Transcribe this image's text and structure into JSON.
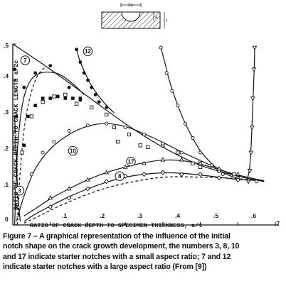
{
  "chart_data": {
    "type": "line",
    "xlabel": "RATIO OF CRACK DEPTH TO SPECIMEN THICKNESS, a/t",
    "ylabel": "RATIO OF CRACK DEPTH TO CRACK LENGTH   a/2c",
    "xlim": [
      0,
      0.7
    ],
    "ylim": [
      0,
      0.5
    ],
    "x_tick_labels": [
      "0",
      ".1",
      ".2",
      ".3",
      ".4",
      ".5",
      ".6",
      ".7"
    ],
    "y_tick_labels": [
      ".1",
      ".2",
      ".3",
      ".4",
      ".5"
    ],
    "inset_labels": [
      "2c",
      "a",
      "t"
    ],
    "grid": false,
    "series": [
      {
        "name": "3",
        "marker": "open-circle",
        "label_at": [
          0.018,
          0.095
        ],
        "points": [
          [
            0.005,
            0.25
          ],
          [
            0.005,
            0.21
          ],
          [
            0.008,
            0.1
          ],
          [
            0.013,
            0.05
          ],
          [
            0.015,
            0.02
          ]
        ],
        "curve": [
          [
            0.005,
            0.3
          ],
          [
            0.008,
            0.22
          ],
          [
            0.011,
            0.14
          ],
          [
            0.015,
            0.06
          ],
          [
            0.02,
            0.01
          ]
        ]
      },
      {
        "name": "7",
        "marker": "filled-circle",
        "label_at": [
          0.033,
          0.455
        ],
        "points": [
          [
            0.005,
            0.43
          ],
          [
            0.01,
            0.3
          ],
          [
            0.03,
            0.38
          ],
          [
            0.06,
            0.42
          ],
          [
            0.1,
            0.44
          ],
          [
            0.15,
            0.38
          ],
          [
            0.18,
            0.345
          ]
        ],
        "curve": [
          [
            0.005,
            0.0
          ],
          [
            0.012,
            0.2
          ],
          [
            0.025,
            0.33
          ],
          [
            0.045,
            0.395
          ],
          [
            0.075,
            0.42
          ],
          [
            0.12,
            0.418
          ],
          [
            0.16,
            0.39
          ],
          [
            0.19,
            0.36
          ]
        ]
      },
      {
        "name": "12",
        "marker": "filled-circle",
        "label_at": [
          0.2,
          0.48
        ],
        "points": [
          [
            0.17,
            0.485
          ],
          [
            0.18,
            0.45
          ],
          [
            0.19,
            0.42
          ],
          [
            0.2,
            0.4
          ],
          [
            0.21,
            0.38
          ],
          [
            0.22,
            0.36
          ],
          [
            0.23,
            0.34
          ],
          [
            0.25,
            0.325
          ]
        ],
        "curve": [
          [
            0.17,
            0.485
          ],
          [
            0.18,
            0.45
          ],
          [
            0.195,
            0.415
          ],
          [
            0.21,
            0.385
          ],
          [
            0.23,
            0.355
          ],
          [
            0.25,
            0.33
          ],
          [
            0.27,
            0.31
          ]
        ]
      },
      {
        "name": "filled-square",
        "marker": "filled-square",
        "points": [
          [
            0.03,
            0.22
          ],
          [
            0.04,
            0.3
          ],
          [
            0.06,
            0.33
          ],
          [
            0.08,
            0.35
          ],
          [
            0.1,
            0.35
          ],
          [
            0.12,
            0.355
          ],
          [
            0.14,
            0.35
          ],
          [
            0.16,
            0.35
          ],
          [
            0.18,
            0.35
          ]
        ],
        "curve": []
      },
      {
        "name": "open-square",
        "marker": "open-square",
        "points": [
          [
            0.02,
            0.1
          ],
          [
            0.025,
            0.2
          ],
          [
            0.05,
            0.3
          ],
          [
            0.08,
            0.34
          ],
          [
            0.11,
            0.355
          ],
          [
            0.14,
            0.36
          ],
          [
            0.17,
            0.335
          ],
          [
            0.21,
            0.325
          ],
          [
            0.25,
            0.305
          ],
          [
            0.27,
            0.27
          ],
          [
            0.28,
            0.23
          ],
          [
            0.31,
            0.25
          ],
          [
            0.34,
            0.22
          ],
          [
            0.36,
            0.215
          ],
          [
            0.4,
            0.22
          ],
          [
            0.44,
            0.2
          ],
          [
            0.48,
            0.17
          ],
          [
            0.5,
            0.16
          ],
          [
            0.55,
            0.15
          ],
          [
            0.59,
            0.14
          ]
        ],
        "curve": []
      },
      {
        "name": "10",
        "marker": "open-circle",
        "label_at": [
          0.16,
          0.205
        ],
        "points": [
          [
            0.05,
            0.14
          ],
          [
            0.08,
            0.2
          ],
          [
            0.11,
            0.23
          ],
          [
            0.15,
            0.26
          ],
          [
            0.2,
            0.275
          ],
          [
            0.25,
            0.28
          ],
          [
            0.3,
            0.27
          ],
          [
            0.35,
            0.25
          ],
          [
            0.4,
            0.225
          ],
          [
            0.45,
            0.2
          ],
          [
            0.5,
            0.175
          ],
          [
            0.55,
            0.15
          ],
          [
            0.6,
            0.13
          ],
          [
            0.65,
            0.12
          ]
        ],
        "curve": [
          [
            0.01,
            0.01
          ],
          [
            0.03,
            0.08
          ],
          [
            0.06,
            0.155
          ],
          [
            0.1,
            0.21
          ],
          [
            0.15,
            0.25
          ],
          [
            0.2,
            0.273
          ],
          [
            0.25,
            0.28
          ],
          [
            0.3,
            0.272
          ],
          [
            0.35,
            0.252
          ],
          [
            0.4,
            0.228
          ],
          [
            0.45,
            0.202
          ],
          [
            0.5,
            0.178
          ],
          [
            0.55,
            0.155
          ],
          [
            0.6,
            0.135
          ],
          [
            0.67,
            0.12
          ]
        ]
      },
      {
        "name": "17",
        "marker": "open-triangle",
        "label_at": [
          0.315,
          0.175
        ],
        "points": [
          [
            0.1,
            0.075
          ],
          [
            0.15,
            0.1
          ],
          [
            0.2,
            0.125
          ],
          [
            0.25,
            0.145
          ],
          [
            0.3,
            0.16
          ],
          [
            0.35,
            0.17
          ],
          [
            0.4,
            0.18
          ],
          [
            0.45,
            0.18
          ],
          [
            0.5,
            0.17
          ],
          [
            0.55,
            0.155
          ],
          [
            0.6,
            0.14
          ]
        ],
        "curve": [
          [
            0.03,
            0.025
          ],
          [
            0.06,
            0.045
          ],
          [
            0.1,
            0.072
          ],
          [
            0.15,
            0.1
          ],
          [
            0.2,
            0.125
          ],
          [
            0.25,
            0.145
          ],
          [
            0.3,
            0.16
          ],
          [
            0.35,
            0.172
          ],
          [
            0.4,
            0.179
          ],
          [
            0.45,
            0.178
          ],
          [
            0.5,
            0.168
          ],
          [
            0.55,
            0.153
          ],
          [
            0.6,
            0.138
          ],
          [
            0.67,
            0.122
          ]
        ]
      },
      {
        "name": "8",
        "marker": "open-diamond",
        "label_at": [
          0.285,
          0.135
        ],
        "points": [
          [
            0.1,
            0.05
          ],
          [
            0.15,
            0.075
          ],
          [
            0.2,
            0.1
          ],
          [
            0.25,
            0.12
          ],
          [
            0.3,
            0.135
          ],
          [
            0.35,
            0.14
          ],
          [
            0.4,
            0.145
          ],
          [
            0.45,
            0.14
          ],
          [
            0.5,
            0.14
          ],
          [
            0.55,
            0.13
          ],
          [
            0.6,
            0.125
          ]
        ],
        "curve": [
          [
            0.03,
            0.01
          ],
          [
            0.06,
            0.03
          ],
          [
            0.1,
            0.052
          ],
          [
            0.15,
            0.078
          ],
          [
            0.2,
            0.1
          ],
          [
            0.25,
            0.118
          ],
          [
            0.3,
            0.132
          ],
          [
            0.35,
            0.14
          ],
          [
            0.4,
            0.144
          ],
          [
            0.45,
            0.143
          ],
          [
            0.5,
            0.138
          ],
          [
            0.55,
            0.132
          ],
          [
            0.6,
            0.126
          ],
          [
            0.67,
            0.122
          ]
        ]
      },
      {
        "name": "dashed-curve",
        "marker": "none",
        "points": [],
        "curve": [
          [
            0.03,
            0.005
          ],
          [
            0.08,
            0.03
          ],
          [
            0.13,
            0.055
          ],
          [
            0.2,
            0.085
          ],
          [
            0.27,
            0.108
          ],
          [
            0.35,
            0.125
          ],
          [
            0.42,
            0.133
          ],
          [
            0.5,
            0.132
          ],
          [
            0.57,
            0.13
          ],
          [
            0.64,
            0.124
          ]
        ]
      },
      {
        "name": "envelope",
        "marker": "none",
        "points": [],
        "curve": [
          [
            0.0,
            0.5
          ],
          [
            0.1,
            0.43
          ],
          [
            0.2,
            0.355
          ],
          [
            0.3,
            0.28
          ],
          [
            0.4,
            0.215
          ],
          [
            0.5,
            0.165
          ],
          [
            0.6,
            0.135
          ],
          [
            0.67,
            0.12
          ]
        ]
      },
      {
        "name": "steep-open-circle",
        "marker": "open-circle",
        "points": [
          [
            0.395,
            0.49
          ],
          [
            0.41,
            0.42
          ],
          [
            0.425,
            0.37
          ],
          [
            0.44,
            0.33
          ],
          [
            0.46,
            0.28
          ],
          [
            0.48,
            0.24
          ],
          [
            0.5,
            0.2
          ],
          [
            0.53,
            0.165
          ],
          [
            0.56,
            0.14
          ],
          [
            0.6,
            0.125
          ]
        ],
        "curve": [
          [
            0.395,
            0.49
          ],
          [
            0.405,
            0.45
          ],
          [
            0.42,
            0.39
          ],
          [
            0.44,
            0.33
          ],
          [
            0.46,
            0.28
          ],
          [
            0.48,
            0.24
          ],
          [
            0.5,
            0.205
          ],
          [
            0.53,
            0.17
          ],
          [
            0.56,
            0.145
          ],
          [
            0.6,
            0.128
          ]
        ]
      },
      {
        "name": "steep-open-triangle",
        "marker": "open-triangle-down",
        "points": [
          [
            0.645,
            0.49
          ],
          [
            0.643,
            0.43
          ],
          [
            0.64,
            0.35
          ],
          [
            0.638,
            0.27
          ],
          [
            0.635,
            0.2
          ],
          [
            0.632,
            0.15
          ],
          [
            0.628,
            0.12
          ]
        ],
        "curve": [
          [
            0.645,
            0.495
          ],
          [
            0.644,
            0.44
          ],
          [
            0.641,
            0.36
          ],
          [
            0.638,
            0.28
          ],
          [
            0.635,
            0.21
          ],
          [
            0.631,
            0.155
          ],
          [
            0.625,
            0.125
          ]
        ]
      },
      {
        "name": "dashed-upper-left",
        "marker": "none",
        "points": [],
        "curve": [
          [
            0.012,
            0.0
          ],
          [
            0.02,
            0.15
          ],
          [
            0.035,
            0.3
          ],
          [
            0.06,
            0.4
          ],
          [
            0.085,
            0.435
          ]
        ]
      }
    ]
  },
  "caption": {
    "lines": [
      "Figure 7 – A graphical representation of the influence of the initial",
      "notch shape on the crack growth development, the numbers 3, 8, 10",
      "and 17 indicate starter notches with a small aspect ratio; 7 and 12",
      "indicate starter notches with a large aspect ratio (From [9])"
    ]
  }
}
